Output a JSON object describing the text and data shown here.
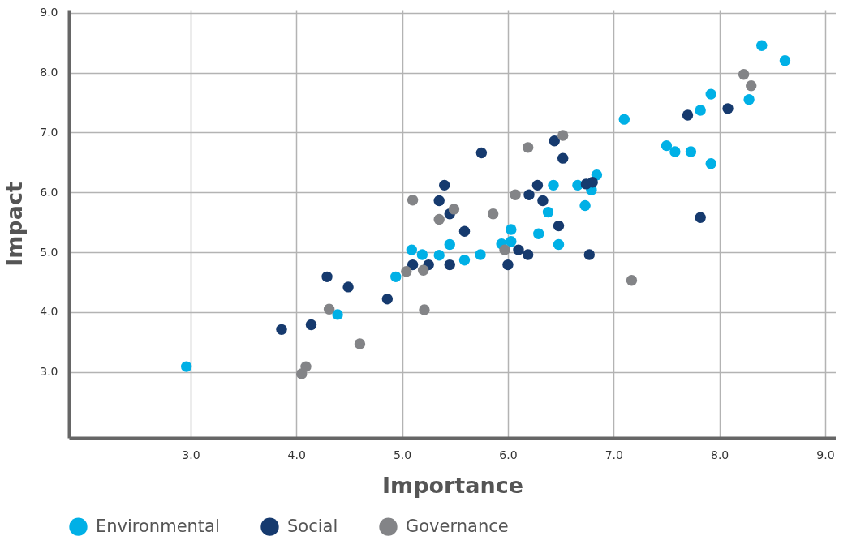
{
  "chart_data": {
    "type": "scatter",
    "xlabel": "Importance",
    "ylabel": "Impact",
    "xlim": [
      1.85,
      9.1
    ],
    "ylim": [
      1.9,
      9.05
    ],
    "xticks": [
      {
        "value": 3,
        "label": "3.0"
      },
      {
        "value": 4,
        "label": "4.0"
      },
      {
        "value": 5,
        "label": "5.0"
      },
      {
        "value": 6,
        "label": "6.0"
      },
      {
        "value": 7,
        "label": "7.0"
      },
      {
        "value": 8,
        "label": "8.0"
      },
      {
        "value": 9,
        "label": "9.0"
      }
    ],
    "yticks": [
      {
        "value": 3,
        "label": "3.0"
      },
      {
        "value": 4,
        "label": "4.0"
      },
      {
        "value": 5,
        "label": "5.0"
      },
      {
        "value": 6,
        "label": "6.0"
      },
      {
        "value": 7,
        "label": "7.0"
      },
      {
        "value": 8,
        "label": "8.0"
      },
      {
        "value": 9,
        "label": "9.0"
      }
    ],
    "grid": true,
    "legend": "bottom",
    "marker": "circle",
    "series": [
      {
        "name": "Environmental",
        "color": "#00b0e6",
        "x": [
          2.96,
          4.39,
          4.94,
          5.09,
          5.19,
          5.35,
          5.45,
          5.59,
          5.74,
          5.94,
          6.03,
          6.03,
          6.29,
          6.38,
          6.43,
          6.48,
          6.66,
          6.73,
          6.79,
          6.84,
          7.1,
          7.5,
          7.58,
          7.73,
          7.92,
          7.82,
          7.92,
          8.4,
          8.62,
          8.28
        ],
        "values": [
          3.09,
          3.96,
          4.59,
          5.04,
          4.96,
          4.95,
          5.13,
          4.87,
          4.96,
          5.14,
          5.38,
          5.18,
          5.31,
          5.67,
          6.12,
          5.13,
          6.12,
          5.78,
          6.04,
          6.29,
          7.22,
          6.78,
          6.68,
          6.68,
          6.48,
          7.37,
          7.64,
          8.45,
          8.2,
          7.55
        ]
      },
      {
        "name": "Social",
        "color": "#163a6e",
        "x": [
          3.86,
          4.14,
          4.29,
          4.49,
          4.86,
          5.1,
          5.25,
          5.45,
          6.0,
          5.35,
          5.4,
          5.45,
          5.59,
          5.75,
          6.1,
          6.19,
          6.2,
          6.28,
          6.33,
          6.44,
          6.48,
          6.52,
          6.74,
          6.77,
          6.8,
          7.7,
          7.82,
          8.08
        ],
        "values": [
          3.71,
          3.79,
          4.59,
          4.42,
          4.22,
          4.79,
          4.79,
          4.79,
          4.79,
          5.86,
          6.12,
          5.64,
          5.35,
          6.66,
          5.04,
          4.96,
          5.96,
          6.12,
          5.86,
          6.86,
          5.44,
          6.57,
          6.14,
          4.96,
          6.17,
          7.29,
          5.58,
          7.4
        ]
      },
      {
        "name": "Governance",
        "color": "#838487",
        "x": [
          4.05,
          4.09,
          4.31,
          4.6,
          5.04,
          5.1,
          5.2,
          5.21,
          5.35,
          5.49,
          5.86,
          5.97,
          6.07,
          6.19,
          6.52,
          7.17,
          8.23,
          8.3
        ],
        "values": [
          2.97,
          3.09,
          4.05,
          3.47,
          4.68,
          5.87,
          4.7,
          4.04,
          5.55,
          5.72,
          5.64,
          5.04,
          5.96,
          6.75,
          6.95,
          4.53,
          7.97,
          7.78
        ]
      }
    ]
  }
}
